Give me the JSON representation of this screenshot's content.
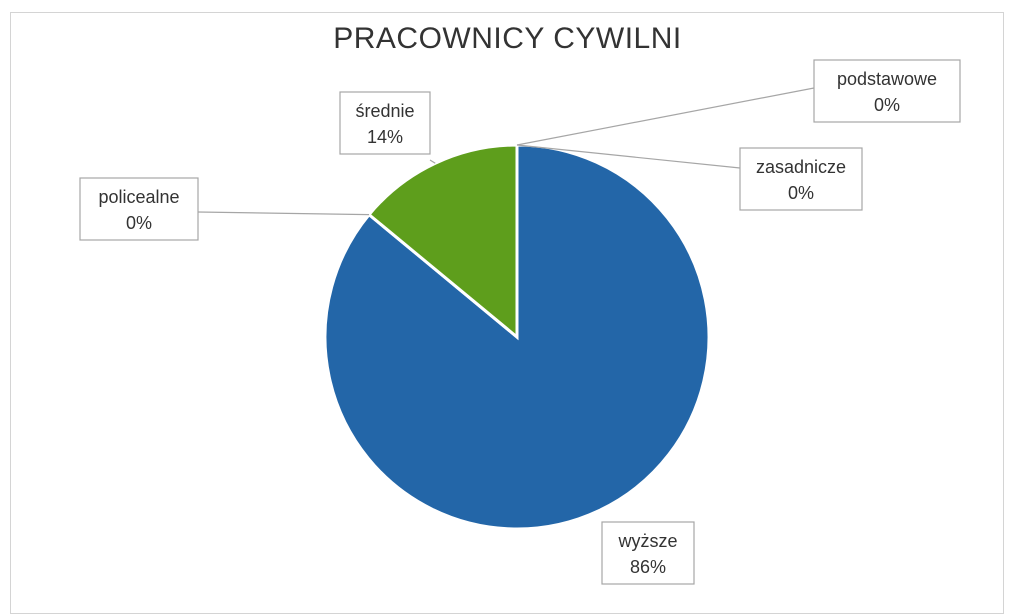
{
  "chart_data": {
    "type": "pie",
    "title": "PRACOWNICY CYWILNI",
    "slices": [
      {
        "label": "wyższe",
        "percent_label": "86%",
        "value": 86,
        "color": "#2366a8"
      },
      {
        "label": "policealne",
        "percent_label": "0%",
        "value": 0,
        "color": "#2366a8"
      },
      {
        "label": "średnie",
        "percent_label": "14%",
        "value": 14,
        "color": "#5e9e1c"
      },
      {
        "label": "podstawowe",
        "percent_label": "0%",
        "value": 0,
        "color": "#2366a8"
      },
      {
        "label": "zasadnicze",
        "percent_label": "0%",
        "value": 0,
        "color": "#2366a8"
      }
    ]
  }
}
